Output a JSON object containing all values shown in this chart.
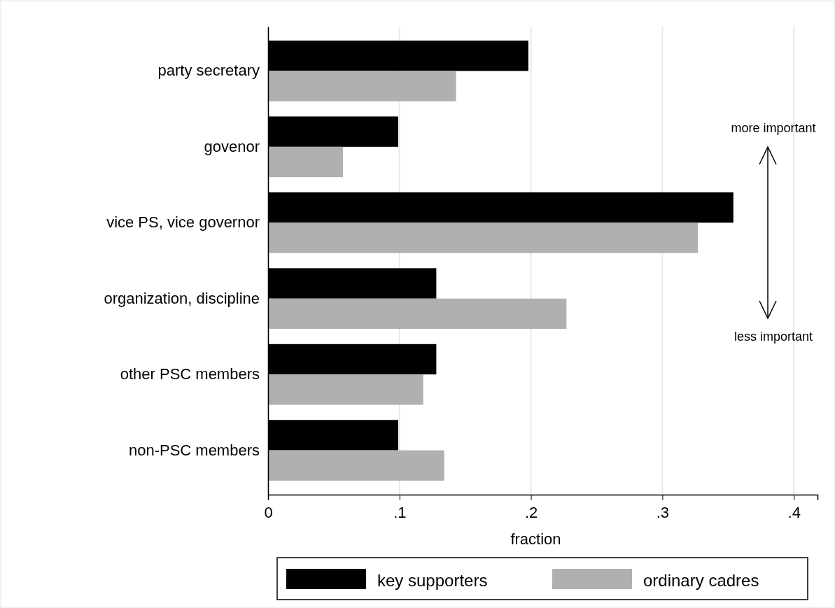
{
  "chart_data": {
    "type": "bar",
    "orientation": "horizontal",
    "xlabel": "fraction",
    "categories": [
      "party secretary",
      "govenor",
      "vice PS, vice governor",
      "organization, discipline",
      "other PSC members",
      "non-PSC members"
    ],
    "series": [
      {
        "name": "key supporters",
        "color": "#000000",
        "values": [
          0.198,
          0.099,
          0.354,
          0.128,
          0.128,
          0.099
        ]
      },
      {
        "name": "ordinary cadres",
        "color": "#b0b0b0",
        "values": [
          0.143,
          0.057,
          0.327,
          0.227,
          0.118,
          0.134
        ]
      }
    ],
    "xlim": [
      0,
      0.418
    ],
    "xticks": [
      {
        "value": 0,
        "label": "0"
      },
      {
        "value": 0.1,
        "label": ".1"
      },
      {
        "value": 0.2,
        "label": ".2"
      },
      {
        "value": 0.3,
        "label": ".3"
      },
      {
        "value": 0.4,
        "label": ".4"
      }
    ],
    "grid": "x",
    "legend": "bottom",
    "annotations": [
      "more important",
      "less important"
    ]
  }
}
